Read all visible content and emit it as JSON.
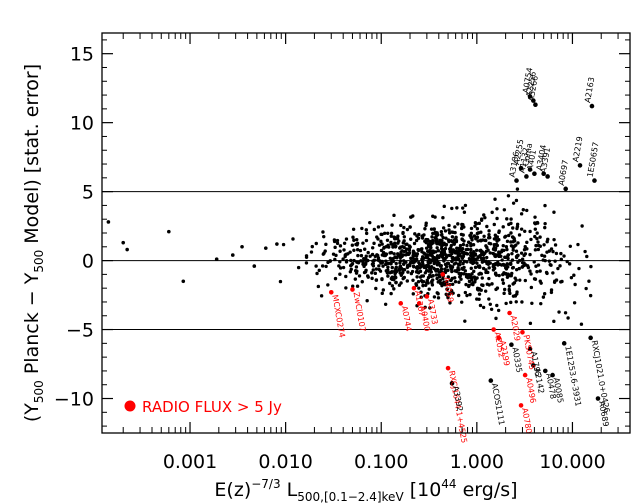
{
  "chart_data": {
    "type": "scatter",
    "x_scale": "log",
    "xlim": [
      0.00012,
      40
    ],
    "ylim": [
      -12.5,
      16.5
    ],
    "x_ticks": [
      {
        "value": 0.001,
        "label": "0.001"
      },
      {
        "value": 0.01,
        "label": "0.010"
      },
      {
        "value": 0.1,
        "label": "0.100"
      },
      {
        "value": 1,
        "label": "1.000"
      },
      {
        "value": 10,
        "label": "10.000"
      }
    ],
    "y_ticks": [
      {
        "value": -10,
        "label": "−10"
      },
      {
        "value": -5,
        "label": "−5"
      },
      {
        "value": 0,
        "label": "0"
      },
      {
        "value": 5,
        "label": "5"
      },
      {
        "value": 10,
        "label": "10"
      },
      {
        "value": 15,
        "label": "15"
      }
    ],
    "hlines": [
      -5,
      0,
      5
    ],
    "xlabel": "E(z)^{-7/3} L_{500,[0.1-2.4]keV} [10^{44} erg/s]",
    "ylabel": "(Y_{500} Planck − Y_{500} Model) [stat. error]",
    "legend": {
      "label": "RADIO FLUX > 5 Jy",
      "color": "#ff0000",
      "placement": "bottom-left"
    },
    "colors": {
      "normal": "#000000",
      "radio": "#ff0000"
    },
    "labelled_points": [
      {
        "name": "A2163",
        "x": 16.0,
        "y": 11.2,
        "color": "#000000"
      },
      {
        "name": "A0754",
        "x": 3.6,
        "y": 11.9,
        "color": "#000000"
      },
      {
        "name": "A2256",
        "x": 3.9,
        "y": 11.6,
        "color": "#000000"
      },
      {
        "name": "A3266",
        "x": 4.1,
        "y": 11.3,
        "color": "#000000"
      },
      {
        "name": "A2219",
        "x": 12.0,
        "y": 6.9,
        "color": "#000000"
      },
      {
        "name": "1ES0657",
        "x": 17.0,
        "y": 5.8,
        "color": "#000000"
      },
      {
        "name": "A0697",
        "x": 8.5,
        "y": 5.2,
        "color": "#000000"
      },
      {
        "name": "A3186",
        "x": 2.6,
        "y": 5.8,
        "color": "#000000"
      },
      {
        "name": "A2255",
        "x": 2.9,
        "y": 6.7,
        "color": "#000000"
      },
      {
        "name": "A1132",
        "x": 3.3,
        "y": 6.1,
        "color": "#000000"
      },
      {
        "name": "Coma",
        "x": 3.6,
        "y": 6.6,
        "color": "#000000"
      },
      {
        "name": "A401",
        "x": 4.0,
        "y": 6.3,
        "color": "#000000"
      },
      {
        "name": "A3404",
        "x": 5.0,
        "y": 6.3,
        "color": "#000000"
      },
      {
        "name": "A3391",
        "x": 5.5,
        "y": 6.1,
        "color": "#000000"
      },
      {
        "name": "MCXC0274",
        "x": 0.03,
        "y": -2.3,
        "color": "#ff0000"
      },
      {
        "name": "ZwCl0107",
        "x": 0.05,
        "y": -2.1,
        "color": "#ff0000"
      },
      {
        "name": "A0744",
        "x": 0.16,
        "y": -3.1,
        "color": "#ff0000"
      },
      {
        "name": "A1367",
        "x": 0.22,
        "y": -2.0,
        "color": "#ff0000"
      },
      {
        "name": "A3733",
        "x": 0.3,
        "y": -2.6,
        "color": "#ff0000"
      },
      {
        "name": "A0400",
        "x": 0.25,
        "y": -3.1,
        "color": "#ff0000"
      },
      {
        "name": "A4059",
        "x": 0.44,
        "y": -1.0,
        "color": "#ff0000"
      },
      {
        "name": "RXCJ1644.1+4525",
        "x": 0.5,
        "y": -7.8,
        "color": "#ff0000"
      },
      {
        "name": "A3392",
        "x": 0.55,
        "y": -8.9,
        "color": "#000000"
      },
      {
        "name": "A2052",
        "x": 1.5,
        "y": -5.0,
        "color": "#ff0000"
      },
      {
        "name": "A2199",
        "x": 1.7,
        "y": -5.6,
        "color": "#ff0000"
      },
      {
        "name": "A2029",
        "x": 2.2,
        "y": -3.8,
        "color": "#ff0000"
      },
      {
        "name": "A0335",
        "x": 2.3,
        "y": -6.1,
        "color": "#000000"
      },
      {
        "name": "PKS0745",
        "x": 3.0,
        "y": -5.2,
        "color": "#ff0000"
      },
      {
        "name": "A1795",
        "x": 3.6,
        "y": -6.4,
        "color": "#000000"
      },
      {
        "name": "A2142",
        "x": 3.9,
        "y": -7.6,
        "color": "#000000"
      },
      {
        "name": "A0496",
        "x": 3.2,
        "y": -8.3,
        "color": "#ff0000"
      },
      {
        "name": "A0478",
        "x": 5.2,
        "y": -8.0,
        "color": "#000000"
      },
      {
        "name": "A0085",
        "x": 6.2,
        "y": -8.3,
        "color": "#000000"
      },
      {
        "name": "ACOS1111",
        "x": 1.4,
        "y": -8.7,
        "color": "#000000"
      },
      {
        "name": "A0780",
        "x": 2.9,
        "y": -10.5,
        "color": "#ff0000"
      },
      {
        "name": "1E1253.6-3931",
        "x": 8.2,
        "y": -6.0,
        "color": "#000000"
      },
      {
        "name": "RXCJ1021.0+0426",
        "x": 15.5,
        "y": -5.6,
        "color": "#000000"
      },
      {
        "name": "A0689",
        "x": 18.5,
        "y": -10.0,
        "color": "#000000"
      }
    ]
  }
}
